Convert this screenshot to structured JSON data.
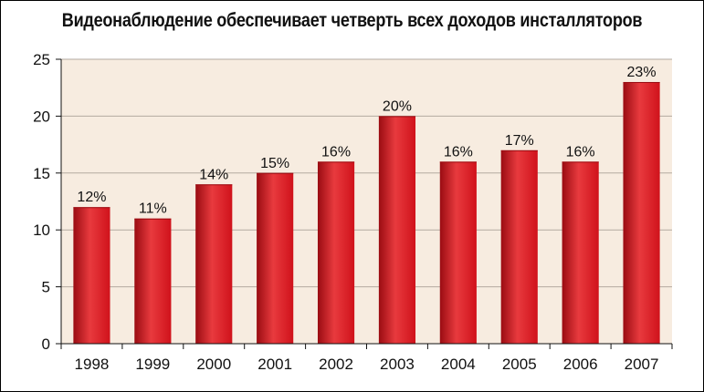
{
  "chart_data": {
    "type": "bar",
    "title": "Видеонаблюдение обеспечивает четверть всех доходов инсталляторов",
    "xlabel": "",
    "ylabel": "",
    "categories": [
      "1998",
      "1999",
      "2000",
      "2001",
      "2002",
      "2003",
      "2004",
      "2005",
      "2006",
      "2007"
    ],
    "values": [
      12,
      11,
      14,
      15,
      16,
      20,
      16,
      17,
      16,
      23
    ],
    "data_labels": [
      "12%",
      "11%",
      "14%",
      "15%",
      "16%",
      "20%",
      "16%",
      "17%",
      "16%",
      "23%"
    ],
    "ylim": [
      0,
      25
    ],
    "yticks": [
      "0",
      "5",
      "10",
      "15",
      "20",
      "25"
    ],
    "grid": true,
    "legend": "none",
    "colors": {
      "bar": "#d0121b",
      "bar_highlight": "#e83a3e",
      "bar_shadow": "#9a0c12",
      "plot_background": "#f7ece0",
      "gridline": "#b3aaa0"
    }
  }
}
